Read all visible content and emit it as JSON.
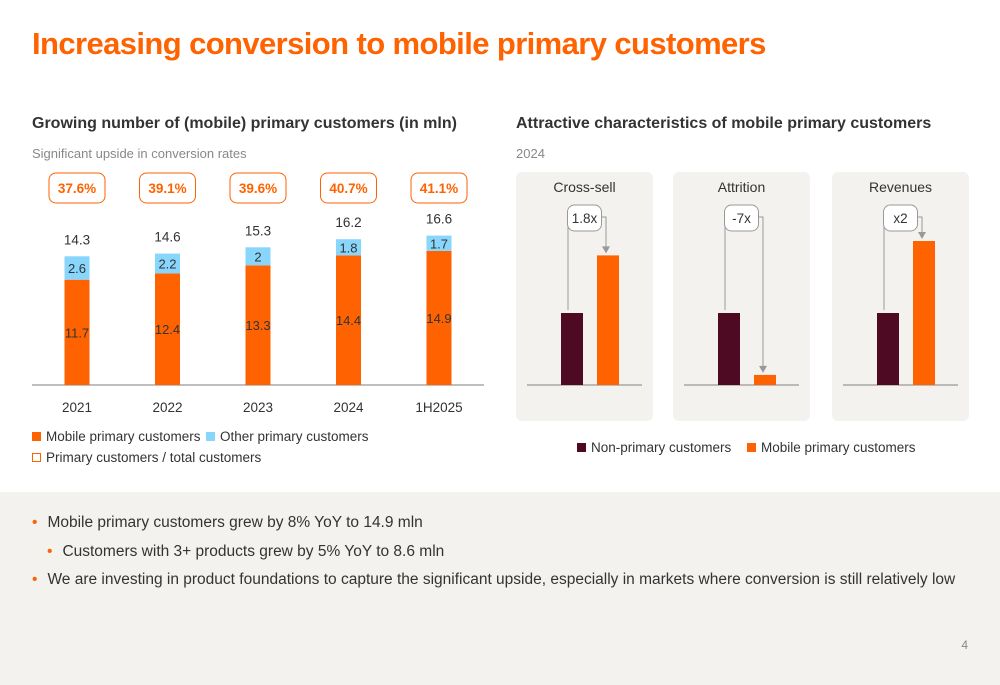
{
  "title": "Increasing conversion to mobile primary customers",
  "left": {
    "title": "Growing number of (mobile) primary customers (in mln)",
    "subtitle": "Significant upside in conversion rates"
  },
  "right": {
    "title": "Attractive characteristics of mobile primary customers",
    "subtitle": "2024"
  },
  "colors": {
    "orange": "#FF6200",
    "light_blue": "#89D6FD",
    "dark_maroon": "#4D0A22",
    "panel_bg": "#F4F2EF"
  },
  "chart_data": [
    {
      "type": "bar",
      "stacked": true,
      "categories": [
        "2021",
        "2022",
        "2023",
        "2024",
        "1H2025"
      ],
      "series": [
        {
          "name": "Mobile primary customers",
          "values": [
            11.7,
            12.4,
            13.3,
            14.4,
            14.9
          ],
          "color": "#FF6200"
        },
        {
          "name": "Other primary customers",
          "values": [
            2.6,
            2.2,
            2.0,
            1.8,
            1.7
          ],
          "color": "#89D6FD"
        }
      ],
      "totals": [
        "14.3",
        "14.6",
        "15.3",
        "16.2",
        "16.6"
      ],
      "ratio_name": "Primary customers / total customers",
      "ratios": [
        "37.6%",
        "39.1%",
        "39.6%",
        "40.7%",
        "41.1%"
      ],
      "ylim": [
        0,
        17
      ]
    },
    {
      "type": "bar",
      "panels": [
        {
          "title": "Cross-sell",
          "multiplier": "1.8x",
          "values": [
            1.0,
            1.8
          ]
        },
        {
          "title": "Attrition",
          "multiplier": "-7x",
          "values": [
            1.0,
            0.14
          ]
        },
        {
          "title": "Revenues",
          "multiplier": "x2",
          "values": [
            1.0,
            2.0
          ]
        }
      ],
      "series": [
        {
          "name": "Non-primary customers",
          "color": "#4D0A22"
        },
        {
          "name": "Mobile primary customers",
          "color": "#FF6200"
        }
      ]
    }
  ],
  "legend_left": [
    "Mobile primary customers",
    "Other primary customers",
    "Primary customers / total customers"
  ],
  "legend_right": [
    "Non-primary customers",
    "Mobile primary customers"
  ],
  "bullets": [
    {
      "text": "Mobile primary customers grew by 8% YoY to 14.9 mln",
      "level": 0
    },
    {
      "text": "Customers with 3+ products grew by 5% YoY to 8.6 mln",
      "level": 1
    },
    {
      "text": "We are investing in product foundations to capture the significant upside, especially in markets where conversion is still relatively low",
      "level": 0
    }
  ],
  "page_number": "4"
}
